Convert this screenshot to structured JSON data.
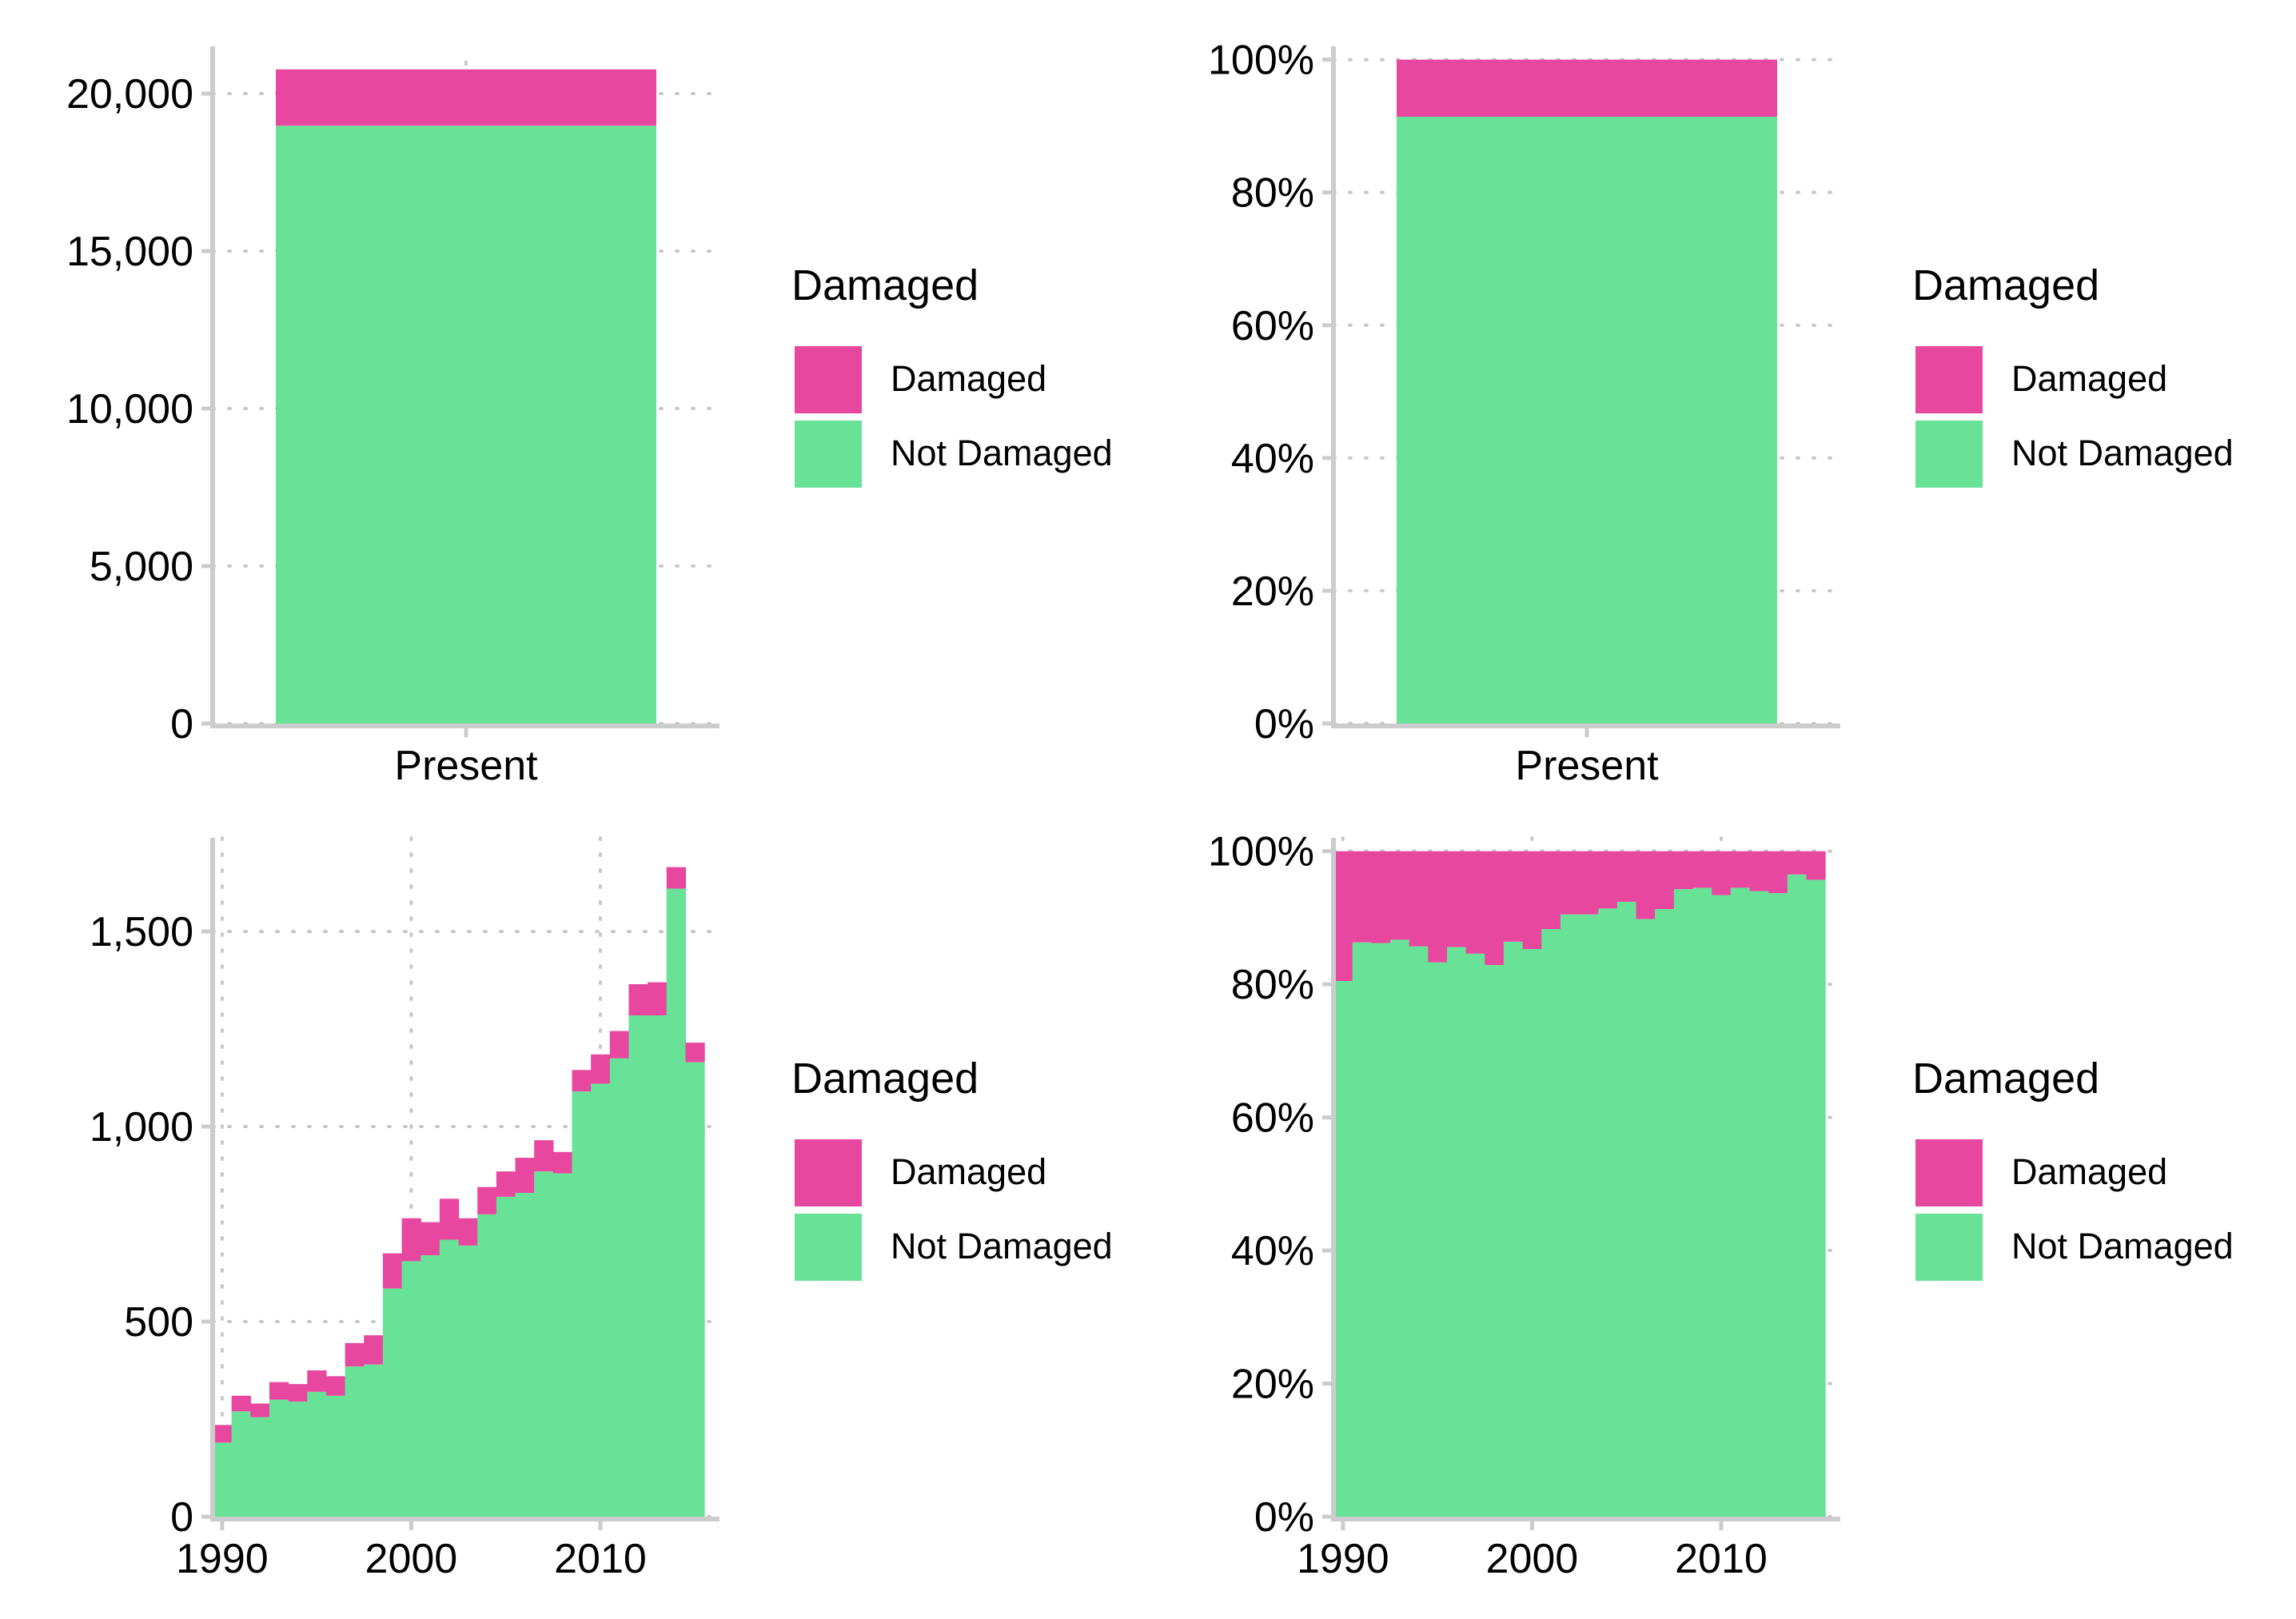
{
  "colors": {
    "damaged": "#e8479f",
    "not_damaged": "#68e297",
    "axis": "#cccccc",
    "grid": "#c8c8c8",
    "text": "#000000"
  },
  "chart_data": [
    {
      "id": "total-count",
      "type": "bar",
      "stacked": true,
      "categories": [
        "Present"
      ],
      "series": [
        {
          "name": "Not Damaged",
          "values": [
            18980
          ]
        },
        {
          "name": "Damaged",
          "values": [
            1790
          ]
        }
      ],
      "ylim": [
        0,
        21500
      ],
      "yticks": [
        0,
        5000,
        10000,
        15000,
        20000
      ],
      "ytick_labels": [
        "0",
        "5,000",
        "10,000",
        "15,000",
        "20,000"
      ],
      "legend": {
        "title": "Damaged",
        "entries": [
          "Damaged",
          "Not Damaged"
        ],
        "position": "right"
      },
      "grid": "dotted"
    },
    {
      "id": "total-percent",
      "type": "bar",
      "stacked": true,
      "normalized": true,
      "categories": [
        "Present"
      ],
      "series": [
        {
          "name": "Not Damaged",
          "values": [
            91.4
          ]
        },
        {
          "name": "Damaged",
          "values": [
            8.6
          ]
        }
      ],
      "ylim": [
        0,
        102
      ],
      "yticks": [
        0,
        20,
        40,
        60,
        80,
        100
      ],
      "ytick_labels": [
        "0%",
        "20%",
        "40%",
        "60%",
        "80%",
        "100%"
      ],
      "legend": {
        "title": "Damaged",
        "entries": [
          "Damaged",
          "Not Damaged"
        ],
        "position": "right"
      },
      "grid": "dotted"
    },
    {
      "id": "yearly-count",
      "type": "bar",
      "stacked": true,
      "x": [
        1990,
        1991,
        1992,
        1993,
        1994,
        1995,
        1996,
        1997,
        1998,
        1999,
        2000,
        2001,
        2002,
        2003,
        2004,
        2005,
        2006,
        2007,
        2008,
        2009,
        2010,
        2011,
        2012,
        2013,
        2014,
        2015
      ],
      "series": [
        {
          "name": "Not Damaged",
          "values": [
            190,
            270,
            255,
            300,
            295,
            320,
            310,
            385,
            390,
            585,
            655,
            670,
            710,
            695,
            775,
            820,
            830,
            885,
            880,
            1090,
            1110,
            1175,
            1285,
            1285,
            1610,
            1165
          ]
        },
        {
          "name": "Damaged",
          "values": [
            45,
            40,
            35,
            45,
            45,
            55,
            50,
            60,
            75,
            90,
            110,
            85,
            105,
            70,
            70,
            65,
            90,
            80,
            55,
            55,
            75,
            70,
            80,
            85,
            55,
            50
          ]
        }
      ],
      "xlim": [
        1989.5,
        2016.3
      ],
      "xticks": [
        1990,
        2000,
        2010
      ],
      "xtick_labels": [
        "1990",
        "2000",
        "2010"
      ],
      "ylim": [
        0,
        1740
      ],
      "yticks": [
        0,
        500,
        1000,
        1500
      ],
      "ytick_labels": [
        "0",
        "500",
        "1,000",
        "1,500"
      ],
      "legend": {
        "title": "Damaged",
        "entries": [
          "Damaged",
          "Not Damaged"
        ],
        "position": "right"
      },
      "grid": "dotted"
    },
    {
      "id": "yearly-percent",
      "type": "bar",
      "stacked": true,
      "normalized": true,
      "x": [
        1990,
        1991,
        1992,
        1993,
        1994,
        1995,
        1996,
        1997,
        1998,
        1999,
        2000,
        2001,
        2002,
        2003,
        2004,
        2005,
        2006,
        2007,
        2008,
        2009,
        2010,
        2011,
        2012,
        2013,
        2014,
        2015
      ],
      "series": [
        {
          "name": "Not Damaged",
          "values": [
            80.5,
            86.3,
            86.2,
            86.7,
            85.7,
            83.3,
            85.6,
            84.6,
            82.9,
            86.4,
            85.3,
            88.3,
            90.5,
            90.5,
            91.4,
            92.4,
            89.8,
            91.3,
            94.3,
            94.5,
            93.4,
            94.5,
            94.0,
            93.7,
            96.5,
            95.7
          ]
        },
        {
          "name": "Damaged",
          "values": [
            19.5,
            13.7,
            13.8,
            13.3,
            14.3,
            16.7,
            14.4,
            15.4,
            17.1,
            13.6,
            14.7,
            11.7,
            9.5,
            9.5,
            8.6,
            7.6,
            10.2,
            8.7,
            5.7,
            5.5,
            6.6,
            5.5,
            6.0,
            6.3,
            3.5,
            4.3
          ]
        }
      ],
      "xlim": [
        1989.5,
        2016.3
      ],
      "xticks": [
        1990,
        2000,
        2010
      ],
      "xtick_labels": [
        "1990",
        "2000",
        "2010"
      ],
      "ylim": [
        0,
        102
      ],
      "yticks": [
        0,
        20,
        40,
        60,
        80,
        100
      ],
      "ytick_labels": [
        "0%",
        "20%",
        "40%",
        "60%",
        "80%",
        "100%"
      ],
      "legend": {
        "title": "Damaged",
        "entries": [
          "Damaged",
          "Not Damaged"
        ],
        "position": "right"
      },
      "grid": "dotted"
    }
  ]
}
